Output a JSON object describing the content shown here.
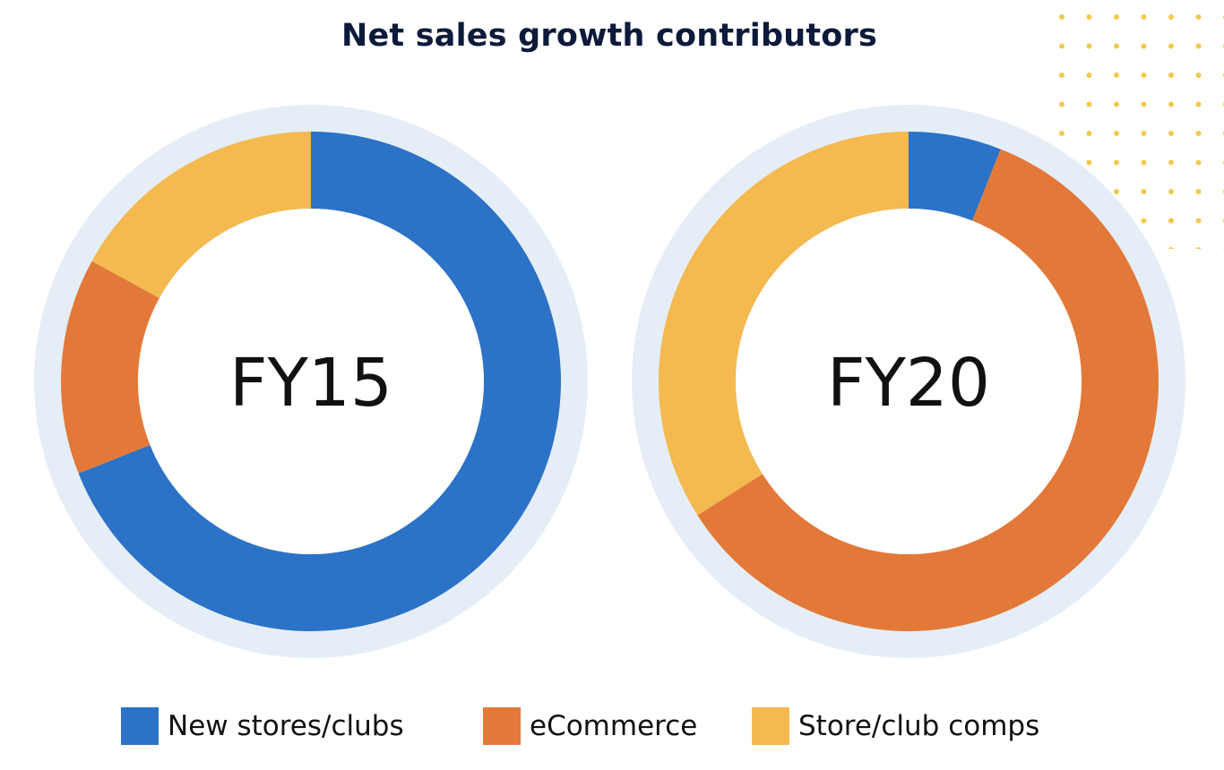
{
  "chart_data": {
    "type": "pie",
    "title": "Net sales growth contributors",
    "categories": [
      "New stores/clubs",
      "eCommerce",
      "Store/club comps"
    ],
    "colors": {
      "New stores/clubs": "#2c72c6",
      "eCommerce": "#e27939",
      "Store/club comps": "#f4b94f",
      "ring_background": "#e5eef7",
      "decorative_dots": "#f2c94c"
    },
    "legend_position": "bottom",
    "charts": [
      {
        "label": "FY15",
        "values": [
          69,
          14,
          17
        ]
      },
      {
        "label": "FY20",
        "values": [
          6,
          60,
          34
        ]
      }
    ]
  }
}
